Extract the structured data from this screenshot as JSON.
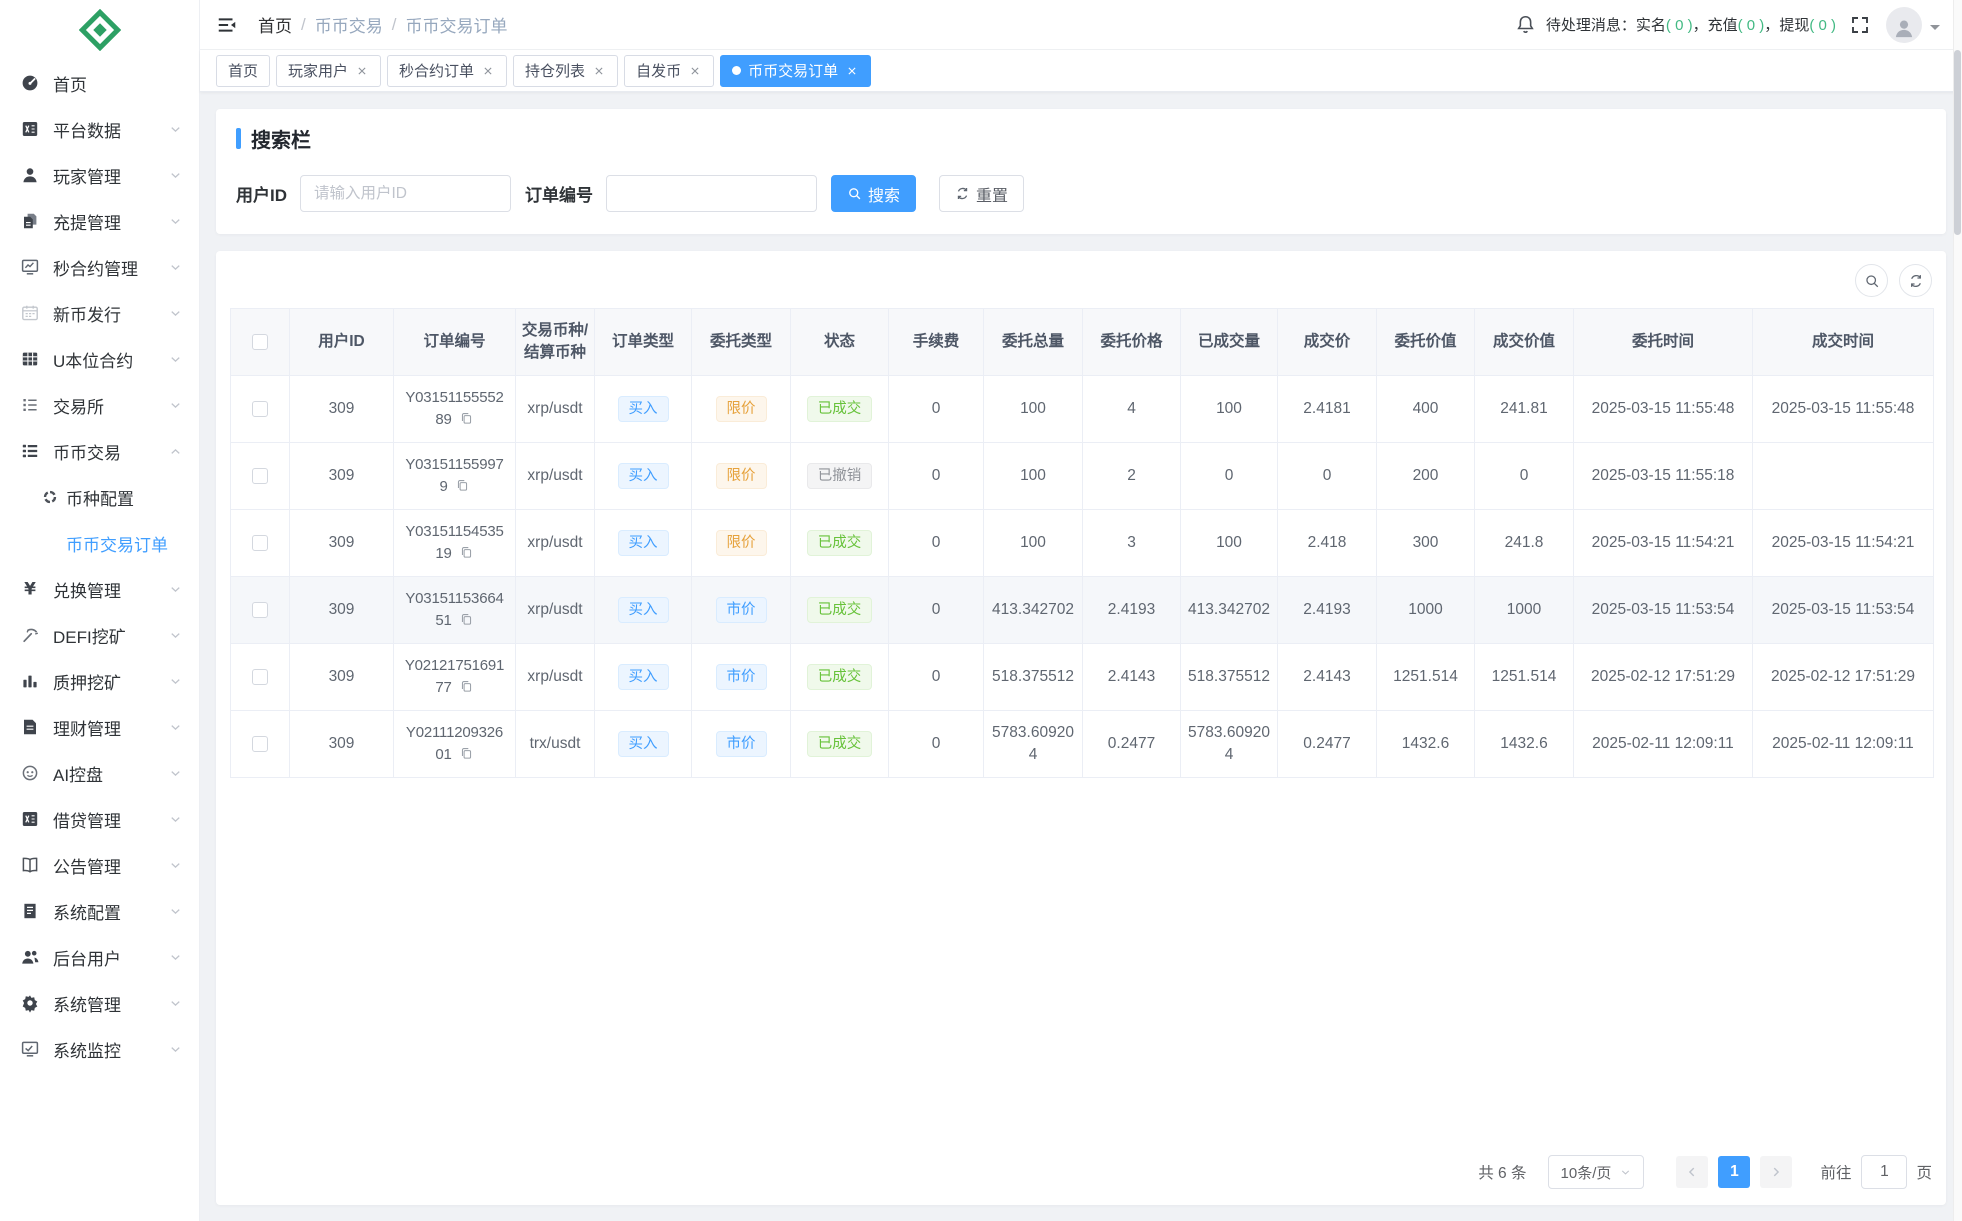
{
  "colors": {
    "primary": "#409eff",
    "success": "#67c23a",
    "warning": "#e6a23c",
    "info": "#909399",
    "count_green": "#42b983",
    "logo_green": "#2da064"
  },
  "sidebar": {
    "logo_icon": "logo-diamond-icon",
    "items": [
      {
        "label": "首页",
        "icon": "dashboard-icon",
        "expandable": false
      },
      {
        "label": "平台数据",
        "icon": "spreadsheet-icon",
        "expandable": true
      },
      {
        "label": "玩家管理",
        "icon": "user-icon",
        "expandable": true
      },
      {
        "label": "充提管理",
        "icon": "transfer-docs-icon",
        "expandable": true
      },
      {
        "label": "秒合约管理",
        "icon": "contract-board-icon",
        "expandable": true
      },
      {
        "label": "新币发行",
        "icon": "calendar-icon",
        "expandable": true
      },
      {
        "label": "U本位合约",
        "icon": "grid-icon",
        "expandable": true
      },
      {
        "label": "交易所",
        "icon": "list-icon",
        "expandable": true
      },
      {
        "label": "币币交易",
        "icon": "trade-list-icon",
        "expandable": true,
        "expanded": true,
        "children": [
          {
            "label": "币种配置",
            "icon": "coin-config-icon",
            "active": false
          },
          {
            "label": "币币交易订单",
            "active": true
          }
        ]
      },
      {
        "label": "兑换管理",
        "icon": "exchange-yen-icon",
        "expandable": true
      },
      {
        "label": "DEFI挖矿",
        "icon": "mining-pick-icon",
        "expandable": true
      },
      {
        "label": "质押挖矿",
        "icon": "stake-bars-icon",
        "expandable": true
      },
      {
        "label": "理财管理",
        "icon": "finance-doc-icon",
        "expandable": true
      },
      {
        "label": "AI控盘",
        "icon": "ai-robot-icon",
        "expandable": true
      },
      {
        "label": "借贷管理",
        "icon": "loan-book-icon",
        "expandable": true
      },
      {
        "label": "公告管理",
        "icon": "notice-book-icon",
        "expandable": true
      },
      {
        "label": "系统配置",
        "icon": "system-doc-icon",
        "expandable": true
      },
      {
        "label": "后台用户",
        "icon": "admin-users-icon",
        "expandable": true
      },
      {
        "label": "系统管理",
        "icon": "gear-icon",
        "expandable": true
      },
      {
        "label": "系统监控",
        "icon": "monitor-icon",
        "expandable": true
      }
    ]
  },
  "header": {
    "fold_icon": "fold-icon",
    "breadcrumb": [
      "首页",
      "币币交易",
      "币币交易订单"
    ],
    "breadcrumb_separator": "/",
    "bell_icon": "bell-icon",
    "messages_prefix": "待处理消息：",
    "messages_separator": "，",
    "messages": [
      {
        "label": "实名",
        "count": "0"
      },
      {
        "label": "充值",
        "count": "0"
      },
      {
        "label": "提现",
        "count": "0"
      }
    ],
    "fullscreen_icon": "fullscreen-icon",
    "avatar_icon": "avatar-icon"
  },
  "tabs": [
    {
      "label": "首页",
      "closable": false,
      "active": false
    },
    {
      "label": "玩家用户",
      "closable": true,
      "active": false
    },
    {
      "label": "秒合约订单",
      "closable": true,
      "active": false
    },
    {
      "label": "持仓列表",
      "closable": true,
      "active": false
    },
    {
      "label": "自发币",
      "closable": true,
      "active": false
    },
    {
      "label": "币币交易订单",
      "closable": true,
      "active": true
    }
  ],
  "search": {
    "title": "搜索栏",
    "fields": [
      {
        "label": "用户ID",
        "placeholder": "请输入用户ID",
        "value": ""
      },
      {
        "label": "订单编号",
        "placeholder": "",
        "value": ""
      }
    ],
    "search_button": "搜索",
    "reset_button": "重置",
    "search_icon": "magnifier-white-icon",
    "reset_icon": "refresh-small-icon"
  },
  "table_toolbar": {
    "icons": [
      "magnifier-icon",
      "refresh-icon"
    ]
  },
  "table": {
    "copy_icon": "copy-icon",
    "headers": [
      "用户ID",
      "订单编号",
      "交易币种/\n结算币种",
      "订单类型",
      "委托类型",
      "状态",
      "手续费",
      "委托总量",
      "委托价格",
      "已成交量",
      "成交价",
      "委托价值",
      "成交价值",
      "委托时间",
      "成交时间"
    ],
    "rows": [
      {
        "user_id": "309",
        "order_no": "Y0315115555289",
        "pair": "xrp/usdt",
        "side": {
          "label": "买入",
          "style": "blue"
        },
        "entrust_type": {
          "label": "限价",
          "style": "orange"
        },
        "status": {
          "label": "已成交",
          "style": "green"
        },
        "fee": "0",
        "total": "100",
        "price": "4",
        "filled": "100",
        "deal_price": "2.4181",
        "entrust_value": "400",
        "deal_value": "241.81",
        "entrust_time": "2025-03-15 11:55:48",
        "deal_time": "2025-03-15 11:55:48",
        "highlighted": false
      },
      {
        "user_id": "309",
        "order_no": "Y031511559979",
        "pair": "xrp/usdt",
        "side": {
          "label": "买入",
          "style": "blue"
        },
        "entrust_type": {
          "label": "限价",
          "style": "orange"
        },
        "status": {
          "label": "已撤销",
          "style": "gray"
        },
        "fee": "0",
        "total": "100",
        "price": "2",
        "filled": "0",
        "deal_price": "0",
        "entrust_value": "200",
        "deal_value": "0",
        "entrust_time": "2025-03-15 11:55:18",
        "deal_time": "",
        "highlighted": false
      },
      {
        "user_id": "309",
        "order_no": "Y0315115453519",
        "pair": "xrp/usdt",
        "side": {
          "label": "买入",
          "style": "blue"
        },
        "entrust_type": {
          "label": "限价",
          "style": "orange"
        },
        "status": {
          "label": "已成交",
          "style": "green"
        },
        "fee": "0",
        "total": "100",
        "price": "3",
        "filled": "100",
        "deal_price": "2.418",
        "entrust_value": "300",
        "deal_value": "241.8",
        "entrust_time": "2025-03-15 11:54:21",
        "deal_time": "2025-03-15 11:54:21",
        "highlighted": false
      },
      {
        "user_id": "309",
        "order_no": "Y0315115366451",
        "pair": "xrp/usdt",
        "side": {
          "label": "买入",
          "style": "blue"
        },
        "entrust_type": {
          "label": "市价",
          "style": "blue"
        },
        "status": {
          "label": "已成交",
          "style": "green"
        },
        "fee": "0",
        "total": "413.342702",
        "price": "2.4193",
        "filled": "413.342702",
        "deal_price": "2.4193",
        "entrust_value": "1000",
        "deal_value": "1000",
        "entrust_time": "2025-03-15 11:53:54",
        "deal_time": "2025-03-15 11:53:54",
        "highlighted": true
      },
      {
        "user_id": "309",
        "order_no": "Y0212175169177",
        "pair": "xrp/usdt",
        "side": {
          "label": "买入",
          "style": "blue"
        },
        "entrust_type": {
          "label": "市价",
          "style": "blue"
        },
        "status": {
          "label": "已成交",
          "style": "green"
        },
        "fee": "0",
        "total": "518.375512",
        "price": "2.4143",
        "filled": "518.375512",
        "deal_price": "2.4143",
        "entrust_value": "1251.514",
        "deal_value": "1251.514",
        "entrust_time": "2025-02-12 17:51:29",
        "deal_time": "2025-02-12 17:51:29",
        "highlighted": false
      },
      {
        "user_id": "309",
        "order_no": "Y0211120932601",
        "pair": "trx/usdt",
        "side": {
          "label": "买入",
          "style": "blue"
        },
        "entrust_type": {
          "label": "市价",
          "style": "blue"
        },
        "status": {
          "label": "已成交",
          "style": "green"
        },
        "fee": "0",
        "total": "5783.609204",
        "price": "0.2477",
        "filled": "5783.609204",
        "deal_price": "0.2477",
        "entrust_value": "1432.6",
        "deal_value": "1432.6",
        "entrust_time": "2025-02-11 12:09:11",
        "deal_time": "2025-02-11 12:09:11",
        "highlighted": false
      }
    ]
  },
  "pagination": {
    "total": "共 6 条",
    "page_size": "10条/页",
    "page": "1",
    "goto_label": "前往",
    "goto_value": "1",
    "page_unit": "页"
  }
}
